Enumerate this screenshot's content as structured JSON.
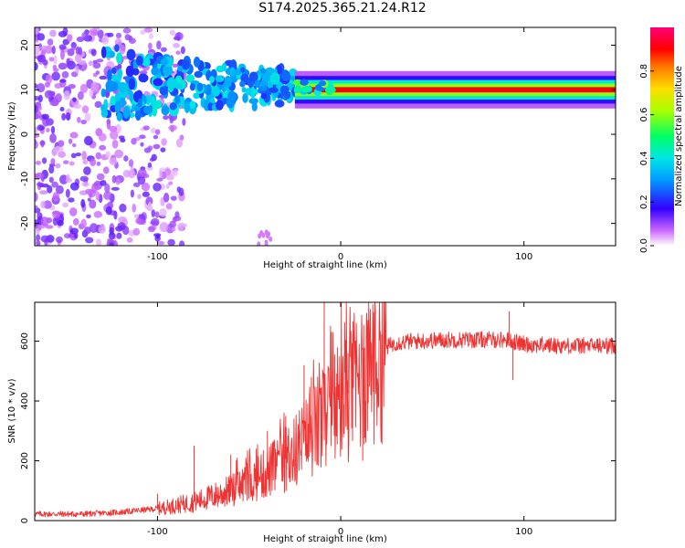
{
  "title": "S174.2025.365.21.24.R12",
  "chart_data": [
    {
      "type": "heatmap",
      "name": "spectrogram",
      "xlabel": "Height of straight line (km)",
      "ylabel": "Frequency (Hz)",
      "xlim": [
        -167,
        150
      ],
      "ylim": [
        -25,
        24
      ],
      "xticks": [
        -100,
        0,
        100
      ],
      "yticks": [
        -20,
        -10,
        0,
        10,
        20
      ],
      "colorbar": {
        "label": "Normalized spectral amplitude",
        "range": [
          0,
          1
        ],
        "ticks": [
          "0.0",
          "0.2",
          "0.4",
          "0.6",
          "0.8"
        ],
        "tick_values": [
          0.0,
          0.2,
          0.4,
          0.6,
          0.8
        ]
      },
      "features": [
        {
          "desc": "scattered low-amplitude noise",
          "x_range": [
            -167,
            -110
          ],
          "freq_range": [
            -25,
            24
          ],
          "amplitude": 0.1
        },
        {
          "desc": "patchy blue/purple band",
          "x_range": [
            -130,
            -25
          ],
          "freq_range": [
            2,
            20
          ],
          "amplitude": 0.2
        },
        {
          "desc": "strong tone near 10 Hz",
          "x_range": [
            -25,
            150
          ],
          "freq_center": 10,
          "amplitude": 0.9
        }
      ]
    },
    {
      "type": "line",
      "name": "snr",
      "xlabel": "Height of straight line (km)",
      "ylabel": "SNR (10 * v/v)",
      "xlim": [
        -167,
        150
      ],
      "ylim": [
        0,
        730
      ],
      "xticks": [
        -100,
        0,
        100
      ],
      "yticks": [
        0,
        200,
        400,
        600
      ],
      "color": "#ee3333",
      "trend": {
        "x": [
          -167,
          -140,
          -120,
          -100,
          -80,
          -60,
          -40,
          -25,
          -15,
          -5,
          0,
          5,
          10,
          15,
          20,
          25,
          30,
          40,
          60,
          90,
          100,
          120,
          150
        ],
        "y": [
          22,
          22,
          28,
          40,
          62,
          100,
          160,
          230,
          300,
          360,
          400,
          430,
          470,
          520,
          560,
          580,
          595,
          600,
          605,
          605,
          590,
          585,
          585
        ]
      },
      "spikes": [
        {
          "x": -100,
          "y": 90
        },
        {
          "x": -80,
          "y": 250
        },
        {
          "x": -60,
          "y": 220
        },
        {
          "x": -40,
          "y": 300
        },
        {
          "x": -30,
          "y": 350
        },
        {
          "x": -20,
          "y": 520
        },
        {
          "x": -16,
          "y": 480
        },
        {
          "x": -9,
          "y": 730
        },
        {
          "x": 4,
          "y": 560
        },
        {
          "x": 12,
          "y": 200
        },
        {
          "x": 92,
          "y": 700
        },
        {
          "x": 94,
          "y": 470
        }
      ]
    }
  ]
}
